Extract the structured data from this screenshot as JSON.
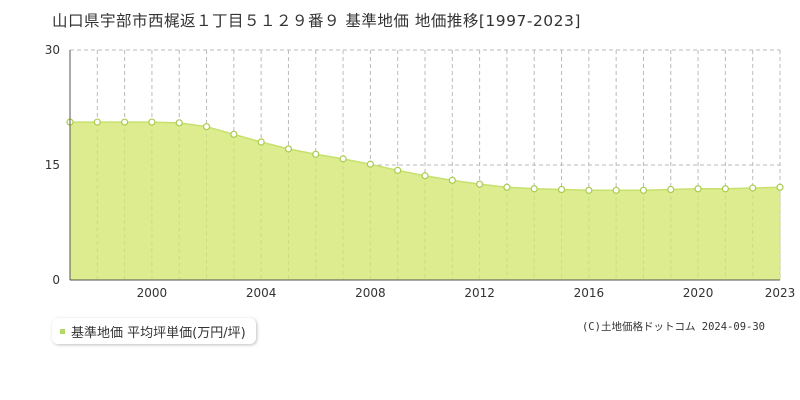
{
  "title": "山口県宇部市西梶返１丁目５１２９番９ 基準地価 地価推移[1997-2023]",
  "legend": {
    "label": "基準地価 平均坪単価(万円/坪)"
  },
  "copyright": "(C)土地価格ドットコム 2024-09-30",
  "colors": {
    "fill": "#dcec8e",
    "line": "#c7e06e",
    "point_stroke": "#a9cc4c",
    "marker": "#b5d86a"
  },
  "chart_data": {
    "type": "area",
    "title": "山口県宇部市西梶返１丁目５１２９番９ 基準地価 地価推移[1997-2023]",
    "xlabel": "",
    "ylabel": "",
    "xlim": [
      1997,
      2023
    ],
    "ylim": [
      0,
      30
    ],
    "yticks": [
      0,
      15,
      30
    ],
    "xticks": [
      2000,
      2004,
      2008,
      2012,
      2016,
      2020,
      2023
    ],
    "grid": true,
    "legend_position": "bottom-left",
    "series": [
      {
        "name": "基準地価 平均坪単価(万円/坪)",
        "x": [
          1997,
          1998,
          1999,
          2000,
          2001,
          2002,
          2003,
          2004,
          2005,
          2006,
          2007,
          2008,
          2009,
          2010,
          2011,
          2012,
          2013,
          2014,
          2015,
          2016,
          2017,
          2018,
          2019,
          2020,
          2021,
          2022,
          2023
        ],
        "values": [
          20.6,
          20.6,
          20.6,
          20.6,
          20.5,
          20.0,
          19.0,
          18.0,
          17.1,
          16.4,
          15.8,
          15.1,
          14.3,
          13.6,
          13.0,
          12.5,
          12.1,
          11.9,
          11.8,
          11.7,
          11.7,
          11.7,
          11.8,
          11.9,
          11.9,
          12.0,
          12.1
        ]
      }
    ]
  }
}
